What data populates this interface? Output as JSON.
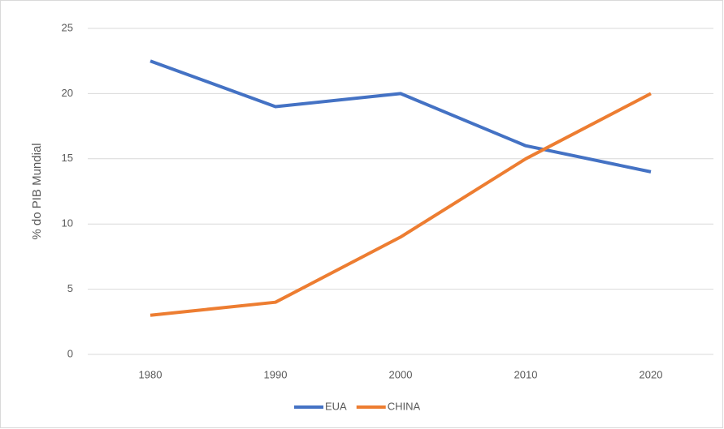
{
  "chart_data": {
    "type": "line",
    "y_label": "% do PIB Mundial",
    "categories": [
      "1980",
      "1990",
      "2000",
      "2010",
      "2020"
    ],
    "series": [
      {
        "name": "EUA",
        "color": "#4472c4",
        "values": [
          22.5,
          19,
          20,
          16,
          14
        ]
      },
      {
        "name": "CHINA",
        "color": "#ed7d31",
        "values": [
          3,
          4,
          9,
          15,
          20
        ]
      }
    ],
    "ylim": [
      0,
      25
    ],
    "yticks": [
      0,
      5,
      10,
      15,
      20,
      25
    ],
    "grid": true,
    "legend": "bottom"
  }
}
